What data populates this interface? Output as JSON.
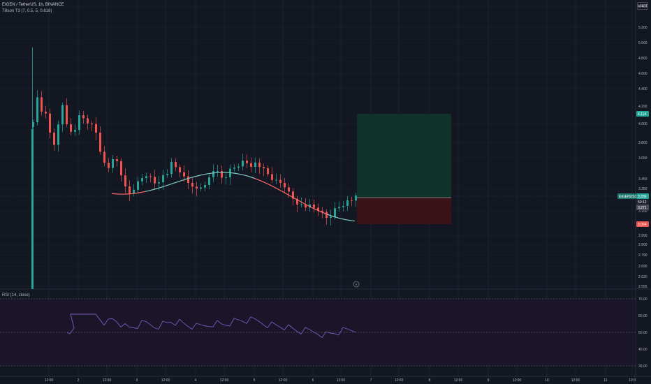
{
  "header": {
    "title": "EIGEN / TetherUS, 1h, BINANCE",
    "indicator": "Tillson T3 (7, 0.5, 5, 0.618)",
    "currency": "USDT"
  },
  "rsi": {
    "label": "RSI (14, close)",
    "levels": [
      "70.00",
      "60.00",
      "50.00",
      "40.00",
      "30.00"
    ]
  },
  "price_axis": {
    "labels": [
      "5.400",
      "5.200",
      "5.000",
      "4.800",
      "4.600",
      "4.400",
      "4.200",
      "4.000",
      "3.800",
      "3.650",
      "3.450",
      "3.350",
      "3.150",
      "2.990",
      "2.900",
      "2.790",
      "2.690",
      "2.620",
      "2.555"
    ]
  },
  "time_axis": {
    "labels": [
      "12:00",
      "2",
      "12:00",
      "3",
      "12:00",
      "4",
      "12:00",
      "5",
      "12:00",
      "6",
      "12:00",
      "7",
      "12:00",
      "8",
      "12:00",
      "9",
      "12:00",
      "10",
      "12:00",
      "11",
      "12:0"
    ]
  },
  "tags": {
    "target": "4.114",
    "symbol": "EIGENUSDT",
    "last_price": "3.286",
    "countdown": "50:12",
    "entry": "3.271",
    "stop": "3.064"
  },
  "colors": {
    "up": "#26a69a",
    "down": "#ef5350",
    "t3_up": "#80cbc4",
    "t3_down": "#ff6b6b",
    "rsi_line": "#7e57c2",
    "profit_zone": "#0f3329",
    "loss_zone": "#3a1319"
  },
  "icons": {
    "goto_realtime": "chevron-double-right-icon"
  }
}
